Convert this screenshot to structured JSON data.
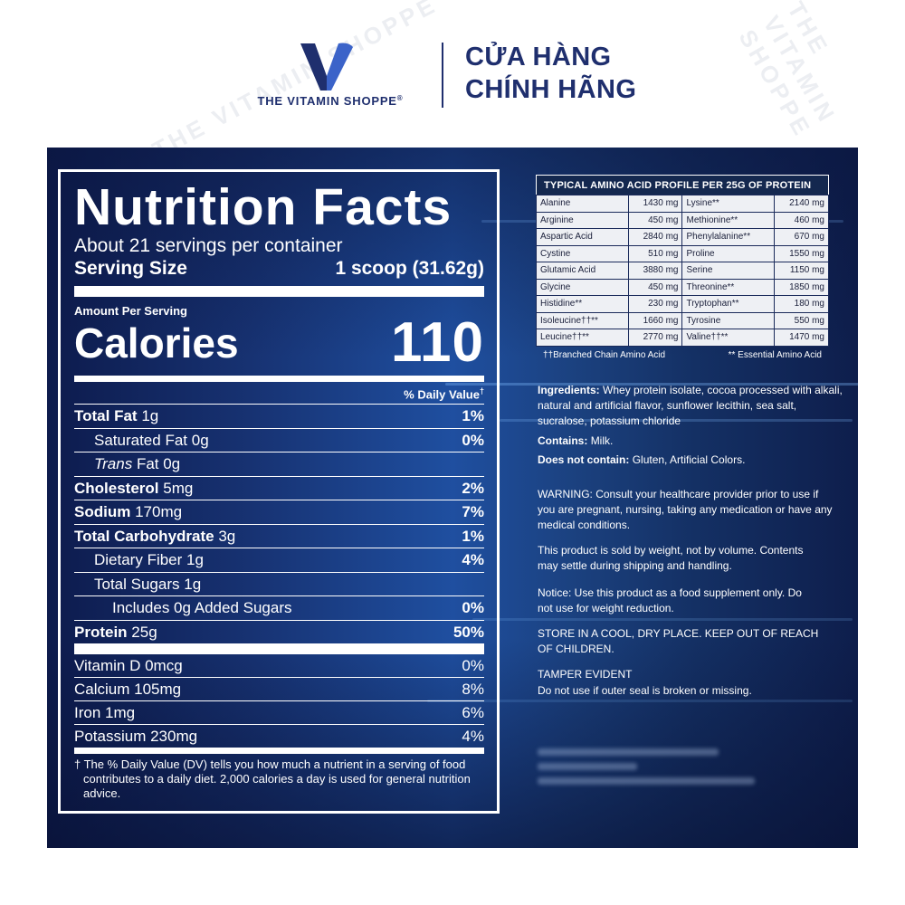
{
  "header": {
    "brand_name": "THE VITAMIN SHOPPE",
    "brand_mark": "®",
    "title_line1": "CỬA HÀNG",
    "title_line2": "CHÍNH HÃNG",
    "watermark_text": "THE VITAMIN SHOPPE",
    "colors": {
      "brand": "#1f2f6e",
      "logo_left": "#1f2f6e",
      "logo_right": "#3b63c9"
    }
  },
  "nutrition": {
    "title": "Nutrition Facts",
    "servings_per_container": "About 21 servings per container",
    "serving_size_label": "Serving Size",
    "serving_size_value": "1 scoop (31.62g)",
    "amount_per_serving": "Amount Per Serving",
    "calories_label": "Calories",
    "calories_value": "110",
    "daily_value_header": "% Daily Value",
    "dagger": "†",
    "rows": [
      {
        "name": "Total Fat",
        "amount": "1g",
        "pct": "1%"
      },
      {
        "name": "Saturated Fat",
        "amount": "0g",
        "pct": "0%"
      },
      {
        "name": "Trans",
        "amount": "Fat 0g",
        "pct": ""
      },
      {
        "name": "Cholesterol",
        "amount": "5mg",
        "pct": "2%"
      },
      {
        "name": "Sodium",
        "amount": "170mg",
        "pct": "7%"
      },
      {
        "name": "Total Carbohydrate",
        "amount": "3g",
        "pct": "1%"
      },
      {
        "name": "Dietary Fiber",
        "amount": "1g",
        "pct": "4%"
      },
      {
        "name": "Total Sugars",
        "amount": "1g",
        "pct": ""
      },
      {
        "name": "Includes 0g Added Sugars",
        "amount": "",
        "pct": "0%"
      },
      {
        "name": "Protein",
        "amount": "25g",
        "pct": "50%"
      }
    ],
    "vitamins": [
      {
        "name": "Vitamin D 0mcg",
        "pct": "0%"
      },
      {
        "name": "Calcium 105mg",
        "pct": "8%"
      },
      {
        "name": "Iron 1mg",
        "pct": "6%"
      },
      {
        "name": "Potassium 230mg",
        "pct": "4%"
      }
    ],
    "footnote": "† The % Daily Value (DV) tells you how much a nutrient in a serving of food contributes to a daily diet. 2,000 calories a day is used for general nutrition advice."
  },
  "amino": {
    "title": "TYPICAL AMINO ACID PROFILE PER 25G OF PROTEIN",
    "rows": [
      [
        "Alanine",
        "1430 mg",
        "Lysine**",
        "2140 mg"
      ],
      [
        "Arginine",
        "450 mg",
        "Methionine**",
        "460 mg"
      ],
      [
        "Aspartic Acid",
        "2840 mg",
        "Phenylalanine**",
        "670 mg"
      ],
      [
        "Cystine",
        "510 mg",
        "Proline",
        "1550 mg"
      ],
      [
        "Glutamic Acid",
        "3880 mg",
        "Serine",
        "1150 mg"
      ],
      [
        "Glycine",
        "450 mg",
        "Threonine**",
        "1850 mg"
      ],
      [
        "Histidine**",
        "230 mg",
        "Tryptophan**",
        "180 mg"
      ],
      [
        "Isoleucine††**",
        "1660 mg",
        "Tyrosine",
        "550 mg"
      ],
      [
        "Leucine††**",
        "2770 mg",
        "Valine††**",
        "1470 mg"
      ]
    ],
    "legend_left": "††Branched Chain Amino Acid",
    "legend_right": "** Essential Amino Acid"
  },
  "info": {
    "ingredients_label": "Ingredients:",
    "ingredients_text": "Whey protein isolate, cocoa processed with alkali, natural and artificial flavor, sunflower lecithin, sea salt, sucralose, potassium chloride",
    "contains_label": "Contains:",
    "contains_text": "Milk.",
    "not_contain_label": "Does not contain:",
    "not_contain_text": "Gluten, Artificial Colors.",
    "warning": "WARNING: Consult your healthcare provider prior to use if you are pregnant, nursing, taking any medication or have any medical conditions.",
    "weight_notice": "This product is sold by weight, not by volume. Contents may settle during shipping and handling.",
    "supplement_notice": "Notice: Use this product as a food supplement only. Do not use for weight reduction.",
    "storage": "STORE IN A COOL, DRY PLACE. KEEP OUT OF REACH OF CHILDREN.",
    "tamper_title": "TAMPER EVIDENT",
    "tamper_text": "Do not use if outer seal is broken or missing."
  }
}
